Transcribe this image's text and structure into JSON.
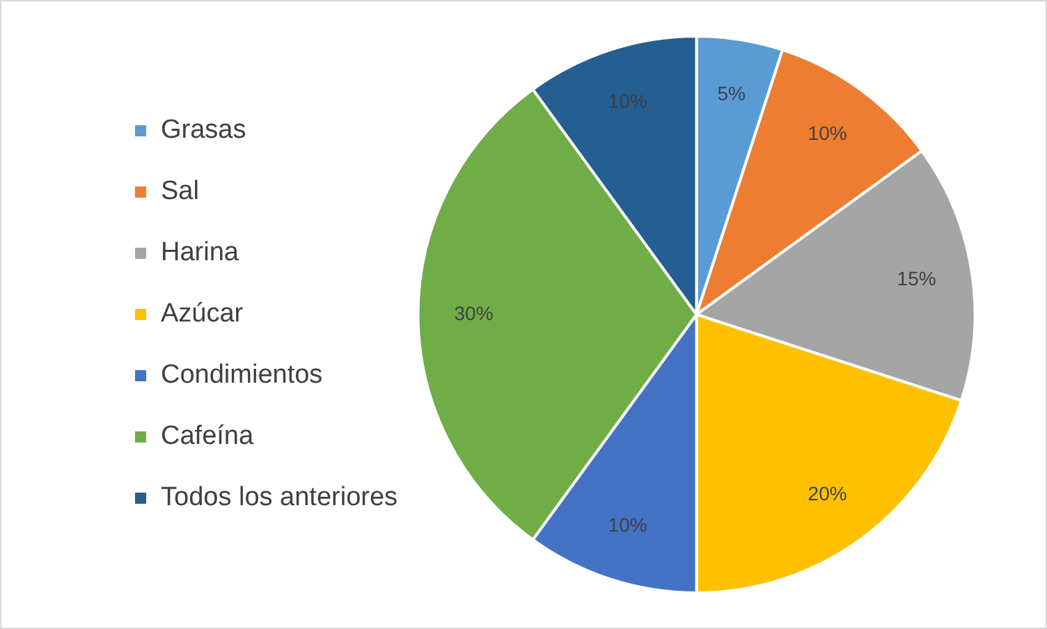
{
  "chart_data": {
    "type": "pie",
    "categories": [
      "Grasas",
      "Sal",
      "Harina",
      "Azúcar",
      "Condimientos",
      "Cafeína",
      "Todos los anteriores"
    ],
    "values": [
      5,
      10,
      15,
      20,
      10,
      30,
      10
    ],
    "colors": [
      "#5b9bd5",
      "#ed7d31",
      "#a5a5a5",
      "#ffc000",
      "#4472c4",
      "#70ad47",
      "#255e91"
    ],
    "value_labels": [
      "5%",
      "10%",
      "15%",
      "20%",
      "10%",
      "30%",
      "10%"
    ],
    "legend": "left"
  }
}
